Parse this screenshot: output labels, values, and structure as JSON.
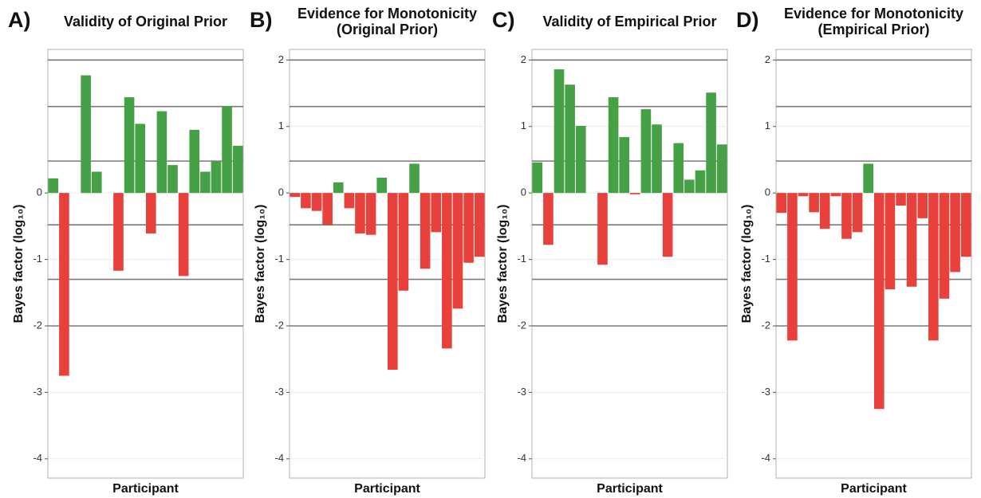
{
  "chart_data": [
    {
      "type": "bar",
      "panel_label": "A)",
      "title": [
        "Validity of Original Prior"
      ],
      "y_label": "Bayes factor (log₁₀)",
      "x_label": "Participant",
      "positive_color": "#46a046",
      "negative_color": "#e8403a",
      "values": [
        0.22,
        -2.75,
        0,
        1.77,
        0.32,
        0,
        -1.17,
        1.44,
        1.04,
        -0.61,
        1.23,
        0.42,
        -1.25,
        0.95,
        0.32,
        0.48,
        1.3,
        0.71
      ],
      "ylim": [
        -4.29,
        2.16
      ],
      "yticks": [
        0,
        -1,
        -2,
        -3,
        -4
      ],
      "grid": true,
      "reference_lines": [
        2,
        1.3,
        0.48,
        -0.48,
        -1.3,
        -2
      ]
    },
    {
      "type": "bar",
      "panel_label": "B)",
      "title": [
        "Evidence for Monotonicity",
        "(Original Prior)"
      ],
      "y_label": "Bayes factor (log₁₀)",
      "x_label": "Participant",
      "positive_color": "#46a046",
      "negative_color": "#e8403a",
      "values": [
        -0.06,
        -0.23,
        -0.27,
        -0.48,
        0.16,
        -0.23,
        -0.61,
        -0.63,
        0.23,
        -2.66,
        -1.47,
        0.44,
        -1.14,
        -0.59,
        -2.34,
        -1.74,
        -1.05,
        -0.96
      ],
      "ylim": [
        -4.29,
        2.16
      ],
      "yticks": [
        2,
        1,
        0,
        -1,
        -2,
        -3,
        -4
      ],
      "grid": true,
      "reference_lines": [
        2,
        1.3,
        0.48,
        -0.48,
        -1.3,
        -2
      ]
    },
    {
      "type": "bar",
      "panel_label": "C)",
      "title": [
        "Validity of Empirical Prior"
      ],
      "y_label": "Bayes factor (log₁₀)",
      "x_label": "Participant",
      "positive_color": "#46a046",
      "negative_color": "#e8403a",
      "values": [
        0.46,
        -0.78,
        1.86,
        1.63,
        1.01,
        0,
        -1.08,
        1.44,
        0.84,
        -0.02,
        1.26,
        1.03,
        -0.96,
        0.75,
        0.2,
        0.34,
        1.51,
        0.73
      ],
      "ylim": [
        -4.29,
        2.16
      ],
      "yticks": [
        2,
        1,
        0,
        -1,
        -2,
        -3,
        -4
      ],
      "grid": true,
      "reference_lines": [
        2,
        1.3,
        0.48,
        -0.48,
        -1.3,
        -2
      ]
    },
    {
      "type": "bar",
      "panel_label": "D)",
      "title": [
        "Evidence for Monotonicity",
        "(Empirical Prior)"
      ],
      "y_label": "Bayes factor (log₁₀)",
      "x_label": "Participant",
      "positive_color": "#46a046",
      "negative_color": "#e8403a",
      "values": [
        -0.3,
        -2.22,
        -0.05,
        -0.29,
        -0.54,
        -0.05,
        -0.69,
        -0.59,
        0.44,
        -3.25,
        -1.45,
        -0.19,
        -1.41,
        -0.38,
        -2.22,
        -1.59,
        -1.19,
        -0.96
      ],
      "ylim": [
        -4.29,
        2.16
      ],
      "yticks": [
        2,
        1,
        0,
        -1,
        -2,
        -3,
        -4
      ],
      "grid": true,
      "reference_lines": [
        2,
        1.3,
        0.48,
        -0.48,
        -1.3,
        -2
      ]
    }
  ]
}
